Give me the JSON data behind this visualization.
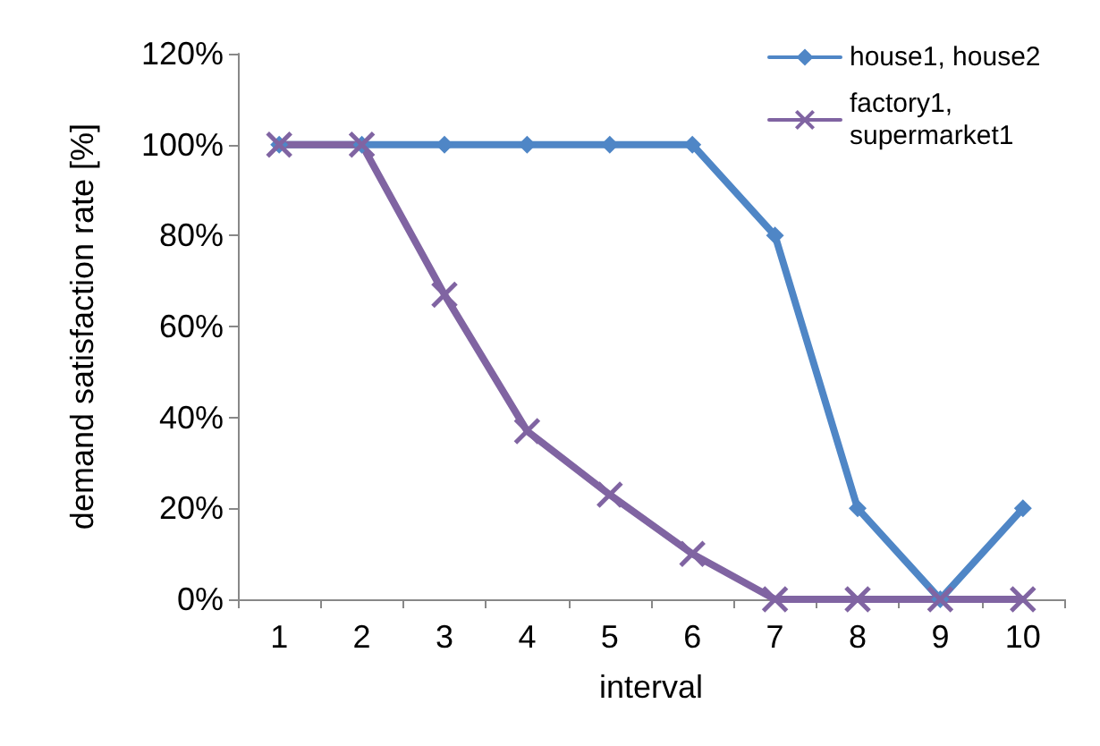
{
  "chart_data": {
    "type": "line",
    "xlabel": "interval",
    "ylabel": "demand satisfaction rate [%]",
    "categories": [
      "1",
      "2",
      "3",
      "4",
      "5",
      "6",
      "7",
      "8",
      "9",
      "10"
    ],
    "series": [
      {
        "name": "house1, house2",
        "color": "#4f86c6",
        "marker": "diamond",
        "values": [
          100,
          100,
          100,
          100,
          100,
          100,
          80,
          20,
          0,
          20
        ]
      },
      {
        "name": "factory1, supermarket1",
        "color": "#8064a2",
        "marker": "cross",
        "values": [
          100,
          100,
          67,
          37,
          23,
          10,
          0,
          0,
          0,
          0
        ]
      }
    ],
    "ylim": [
      0,
      120
    ],
    "yticks": [
      {
        "value": 0,
        "label": "0%"
      },
      {
        "value": 20,
        "label": "20%"
      },
      {
        "value": 40,
        "label": "40%"
      },
      {
        "value": 60,
        "label": "60%"
      },
      {
        "value": 80,
        "label": "80%"
      },
      {
        "value": 100,
        "label": "100%"
      },
      {
        "value": 120,
        "label": "120%"
      }
    ],
    "grid": false,
    "legend": "top right",
    "line_style": "solid"
  }
}
